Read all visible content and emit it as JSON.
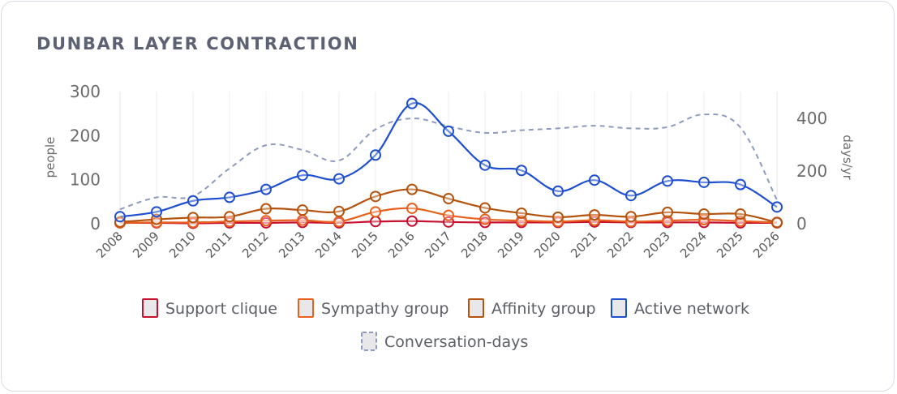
{
  "card": {
    "title": "DUNBAR LAYER CONTRACTION"
  },
  "chart_data": {
    "type": "line",
    "title": "DUNBAR LAYER CONTRACTION",
    "categories": [
      "2008",
      "2009",
      "2010",
      "2011",
      "2012",
      "2013",
      "2014",
      "2015",
      "2016",
      "2017",
      "2018",
      "2019",
      "2020",
      "2021",
      "2022",
      "2023",
      "2024",
      "2025",
      "2026"
    ],
    "y_left": {
      "label": "people",
      "range": [
        0,
        300
      ],
      "ticks": [
        0,
        100,
        200,
        300
      ]
    },
    "y_right": {
      "label": "days/yr",
      "range": [
        0,
        500
      ],
      "ticks": [
        0,
        200,
        400
      ]
    },
    "grid": {
      "vertical": true,
      "horizontal": false
    },
    "legend": "bottom",
    "series": [
      {
        "name": "Support clique",
        "axis": "left",
        "color": "#c8102e",
        "style": "solid",
        "markers": true,
        "values": [
          2,
          2,
          1,
          2,
          2,
          3,
          2,
          5,
          6,
          4,
          3,
          3,
          3,
          4,
          3,
          3,
          3,
          2,
          2
        ]
      },
      {
        "name": "Sympathy group",
        "axis": "left",
        "color": "#e8601c",
        "style": "solid",
        "markers": true,
        "values": [
          2,
          3,
          3,
          5,
          7,
          8,
          5,
          27,
          35,
          19,
          10,
          7,
          5,
          8,
          5,
          7,
          9,
          6,
          3
        ]
      },
      {
        "name": "Affinity group",
        "axis": "left",
        "color": "#b4530e",
        "style": "solid",
        "markers": true,
        "values": [
          4,
          10,
          14,
          16,
          34,
          31,
          28,
          62,
          78,
          57,
          36,
          24,
          15,
          20,
          16,
          26,
          22,
          22,
          3
        ]
      },
      {
        "name": "Active network",
        "axis": "left",
        "color": "#1f4fd1",
        "style": "solid",
        "markers": true,
        "values": [
          16,
          27,
          52,
          60,
          78,
          110,
          102,
          156,
          273,
          210,
          133,
          121,
          74,
          99,
          64,
          97,
          94,
          89,
          38
        ]
      },
      {
        "name": "Conversation-days",
        "axis": "right",
        "color": "#8d9cbe",
        "style": "dashed",
        "markers": false,
        "values": [
          55,
          100,
          105,
          210,
          298,
          280,
          240,
          358,
          400,
          370,
          345,
          355,
          362,
          372,
          362,
          367,
          415,
          365,
          90
        ]
      }
    ]
  }
}
